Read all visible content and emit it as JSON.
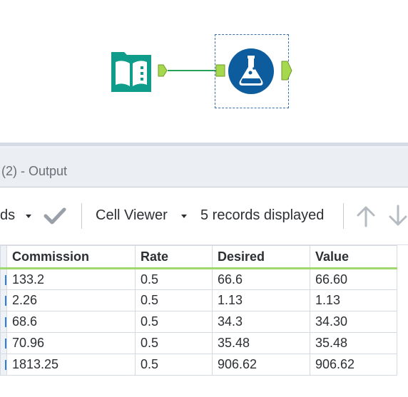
{
  "workflow": {
    "input_tool": {
      "icon": "input-data-book-icon",
      "color": "#0f9c8b"
    },
    "formula_tool": {
      "icon": "formula-flask-icon",
      "color": "#0d5c9e",
      "selected": true
    },
    "connection_color": "#27a05a",
    "anchor_color": "#a6d84d"
  },
  "results": {
    "title": "(2) - Output",
    "toolbar": {
      "left_label": "ds",
      "check_icon": "checkmark-icon",
      "cell_viewer_label": "Cell Viewer",
      "records_label": "5 records displayed",
      "up_icon": "arrow-up-icon",
      "down_icon": "arrow-down-icon"
    },
    "columns": [
      "Commission",
      "Rate",
      "Desired",
      "Value"
    ],
    "rows": [
      [
        "133.2",
        "0.5",
        "66.6",
        "66.60"
      ],
      [
        "2.26",
        "0.5",
        "1.13",
        "1.13"
      ],
      [
        "68.6",
        "0.5",
        "34.3",
        "34.30"
      ],
      [
        "70.96",
        "0.5",
        "35.48",
        "35.48"
      ],
      [
        "1813.25",
        "0.5",
        "906.62",
        "906.62"
      ]
    ],
    "header_underline_color": "#9ed86e"
  }
}
